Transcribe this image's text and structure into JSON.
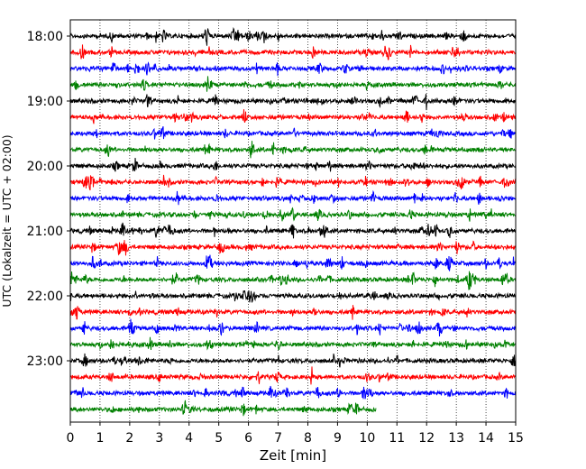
{
  "chart_data": {
    "type": "line",
    "title": "",
    "xlabel": "Zeit  [min]",
    "ylabel": "UTC (Lokalzeit = UTC + 02:00)",
    "xlim": [
      0,
      15
    ],
    "x_ticks": [
      "0",
      "1",
      "2",
      "3",
      "4",
      "5",
      "6",
      "7",
      "8",
      "9",
      "10",
      "11",
      "12",
      "13",
      "14",
      "15"
    ],
    "y_ticks": [
      "18:00",
      "19:00",
      "20:00",
      "21:00",
      "22:00",
      "23:00"
    ],
    "grid": "vertical dotted",
    "trace_minutes": 15,
    "trace_start": "18:00",
    "trace_end": "23:45",
    "last_trace_end_min": 10.3,
    "color_cycle": [
      "#000000",
      "#ff0000",
      "#0000ff",
      "#008000"
    ],
    "series": [
      {
        "values": [
          0,
          15
        ]
      },
      {
        "values": [
          0,
          15
        ]
      },
      {
        "values": [
          0,
          15
        ]
      },
      {
        "values": [
          0,
          15
        ]
      },
      {
        "values": [
          0,
          15
        ]
      },
      {
        "values": [
          0,
          15
        ]
      },
      {
        "values": [
          0,
          15
        ]
      },
      {
        "values": [
          0,
          15
        ]
      },
      {
        "values": [
          0,
          15
        ]
      },
      {
        "values": [
          0,
          15
        ]
      },
      {
        "values": [
          0,
          15
        ]
      },
      {
        "values": [
          0,
          15
        ]
      },
      {
        "values": [
          0,
          15
        ]
      },
      {
        "values": [
          0,
          15
        ]
      },
      {
        "values": [
          0,
          15
        ]
      },
      {
        "values": [
          0,
          15
        ]
      },
      {
        "values": [
          0,
          15
        ]
      },
      {
        "values": [
          0,
          15
        ]
      },
      {
        "values": [
          0,
          15
        ]
      },
      {
        "values": [
          0,
          15
        ]
      },
      {
        "values": [
          0,
          15
        ]
      },
      {
        "values": [
          0,
          15
        ]
      },
      {
        "values": [
          0,
          15
        ]
      },
      {
        "values": [
          0,
          10.3
        ]
      }
    ]
  }
}
